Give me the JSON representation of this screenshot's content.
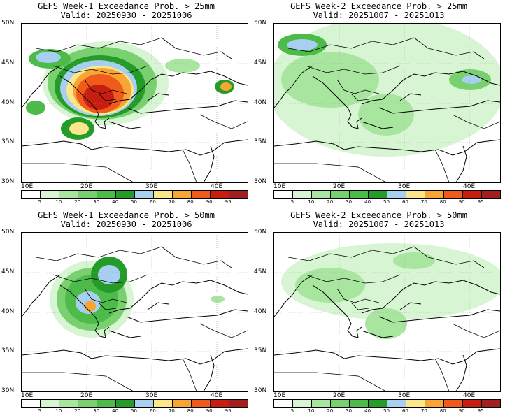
{
  "panels": [
    {
      "title1": "GEFS Week-1 Exceedance Prob. > 25mm",
      "title2": "Valid: 20250930 - 20251006",
      "intensity": "high"
    },
    {
      "title1": "GEFS Week-2 Exceedance Prob. > 25mm",
      "title2": "Valid: 20251007 - 20251013",
      "intensity": "low"
    },
    {
      "title1": "GEFS Week-1 Exceedance Prob. > 50mm",
      "title2": "Valid: 20250930 - 20251006",
      "intensity": "medium"
    },
    {
      "title1": "GEFS Week-2 Exceedance Prob. > 50mm",
      "title2": "Valid: 20251007 - 20251013",
      "intensity": "minimal"
    }
  ],
  "axes": {
    "lat_labels": [
      "50N",
      "45N",
      "40N",
      "35N",
      "30N"
    ],
    "lon_labels": [
      "10E",
      "20E",
      "30E",
      "40E"
    ]
  },
  "colorbar": {
    "ticks": [
      "5",
      "10",
      "20",
      "30",
      "40",
      "50",
      "60",
      "70",
      "80",
      "90",
      "95"
    ],
    "colors": [
      "#ffffff",
      "#d7f5d2",
      "#a8e6a0",
      "#78d06e",
      "#4dbb4a",
      "#259c2a",
      "#a6cff0",
      "#fbe68c",
      "#f9a534",
      "#f05a1a",
      "#c81e12",
      "#a31f1f"
    ]
  }
}
